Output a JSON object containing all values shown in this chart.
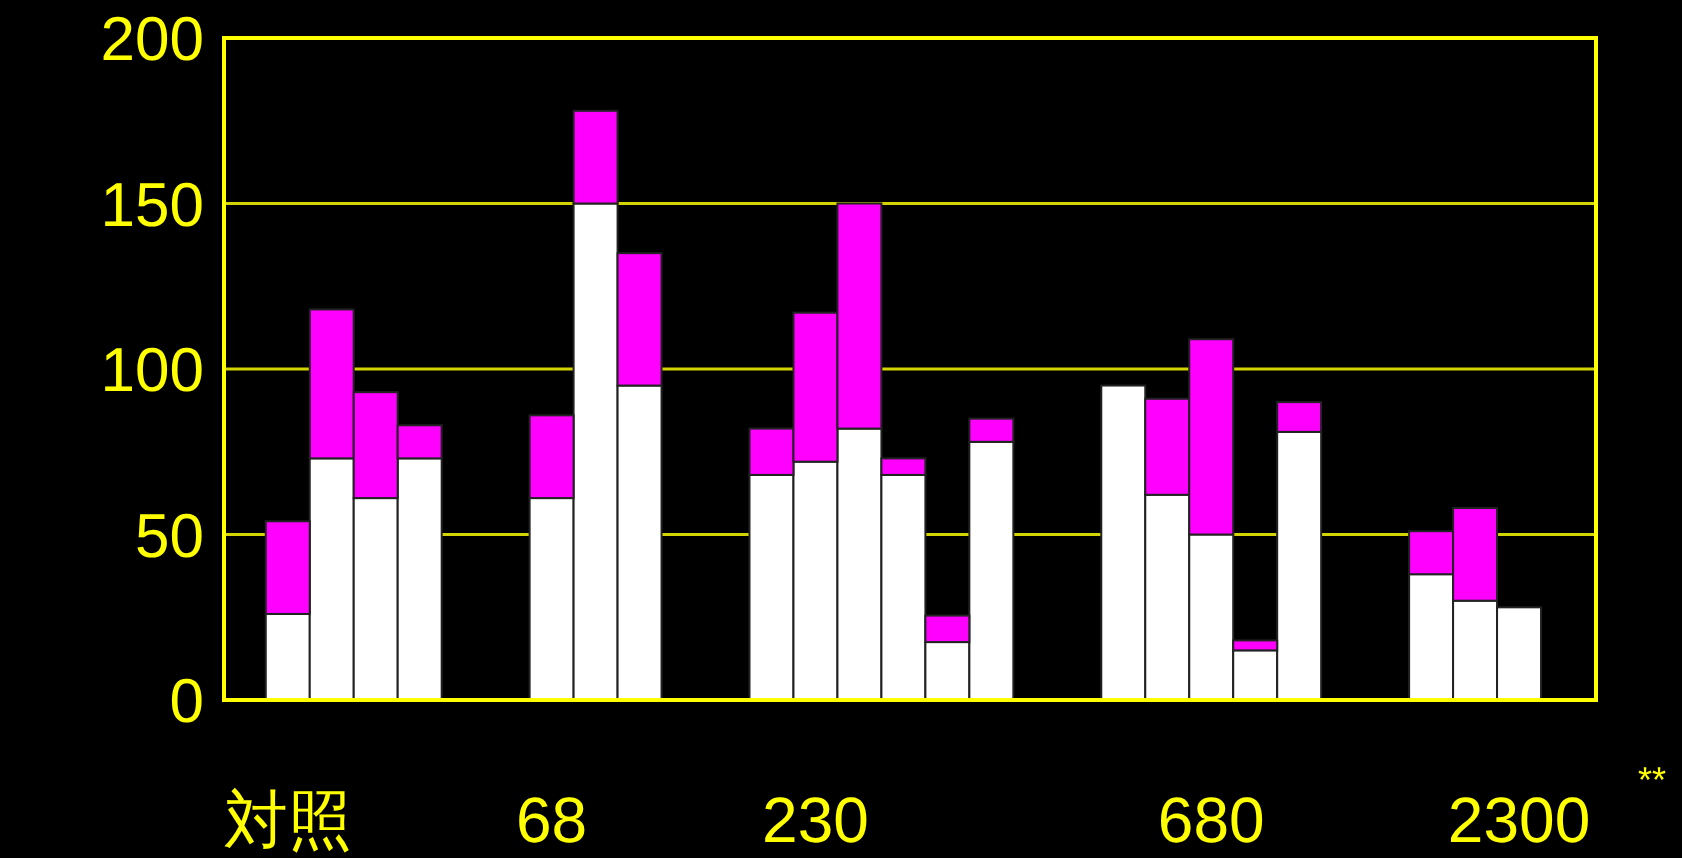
{
  "chart_data": {
    "type": "bar",
    "stacked": true,
    "categories": [
      "対照",
      null,
      null,
      null,
      null,
      null,
      "68",
      null,
      null,
      null,
      null,
      null,
      "230",
      null,
      null,
      null,
      null,
      null,
      null,
      null,
      null,
      "680",
      null,
      null,
      null,
      null,
      null,
      null,
      "2300"
    ],
    "series": [
      {
        "color": "#ffffff",
        "values": [
          26,
          73,
          61,
          73,
          null,
          null,
          61,
          150,
          95,
          null,
          null,
          68,
          72,
          82,
          68,
          17.5,
          78,
          null,
          null,
          95,
          62,
          50,
          15,
          81,
          null,
          null,
          38,
          30,
          28
        ]
      },
      {
        "color": "#ff00ff",
        "values": [
          28,
          45,
          32,
          10,
          null,
          null,
          25,
          28,
          40,
          null,
          null,
          14,
          45,
          68,
          5,
          8,
          7,
          null,
          null,
          null,
          29,
          59,
          3,
          9,
          null,
          null,
          13,
          28,
          null
        ]
      }
    ],
    "ylim": [
      0,
      200
    ],
    "yticks": [
      0,
      50,
      100,
      150,
      200
    ],
    "grid": "y",
    "annotations": [
      "**"
    ]
  }
}
